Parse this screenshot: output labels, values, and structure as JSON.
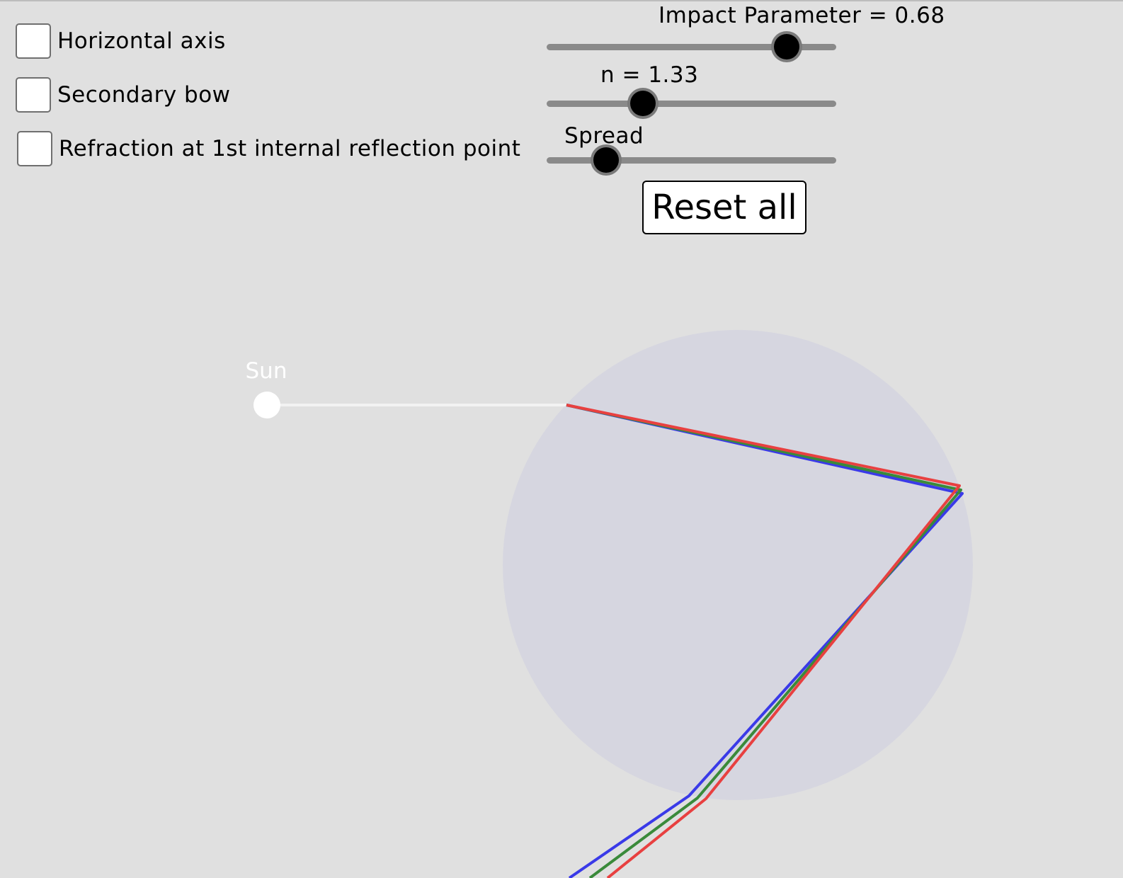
{
  "checkboxes": [
    {
      "label": "Horizontal axis",
      "checked": false
    },
    {
      "label": "Secondary bow",
      "checked": false
    },
    {
      "label": "Refraction at 1st internal reflection point",
      "checked": false
    }
  ],
  "sliders": {
    "impact": {
      "caption": "Impact Parameter = 0.68",
      "value_fraction": 0.83
    },
    "n": {
      "caption": "n = 1.33",
      "value_fraction": 0.33
    },
    "spread": {
      "caption": "Spread",
      "value_fraction": 0.2
    }
  },
  "reset_button": {
    "label": "Reset all"
  },
  "scene": {
    "sun_label": "Sun",
    "colors": {
      "background": "#e0e0e0",
      "drop": "#d6d6e0",
      "sun": "#ffffff",
      "incident_ray": "#f2f2f2",
      "ray_red": "#e84040",
      "ray_green": "#3a8a3a",
      "ray_blue": "#3a3ae8"
    }
  }
}
